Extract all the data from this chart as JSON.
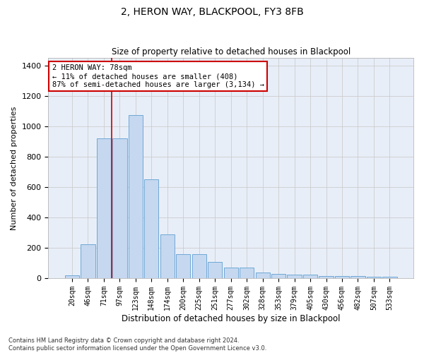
{
  "title": "2, HERON WAY, BLACKPOOL, FY3 8FB",
  "subtitle": "Size of property relative to detached houses in Blackpool",
  "xlabel": "Distribution of detached houses by size in Blackpool",
  "ylabel": "Number of detached properties",
  "bar_labels": [
    "20sqm",
    "46sqm",
    "71sqm",
    "97sqm",
    "123sqm",
    "148sqm",
    "174sqm",
    "200sqm",
    "225sqm",
    "251sqm",
    "277sqm",
    "302sqm",
    "328sqm",
    "353sqm",
    "379sqm",
    "405sqm",
    "430sqm",
    "456sqm",
    "482sqm",
    "507sqm",
    "533sqm"
  ],
  "bar_values": [
    18,
    225,
    920,
    920,
    1075,
    650,
    290,
    158,
    158,
    105,
    70,
    68,
    38,
    28,
    25,
    22,
    15,
    12,
    15,
    8,
    10
  ],
  "bar_color": "#c5d8f0",
  "bar_edge_color": "#6fa8d6",
  "grid_color": "#cccccc",
  "bg_color": "#e8eef8",
  "vline_color": "#cc0000",
  "annotation_text": "2 HERON WAY: 78sqm\n← 11% of detached houses are smaller (408)\n87% of semi-detached houses are larger (3,134) →",
  "annotation_box_color": "#cc0000",
  "ylim": [
    0,
    1450
  ],
  "yticks": [
    0,
    200,
    400,
    600,
    800,
    1000,
    1200,
    1400
  ],
  "footer_line1": "Contains HM Land Registry data © Crown copyright and database right 2024.",
  "footer_line2": "Contains public sector information licensed under the Open Government Licence v3.0."
}
